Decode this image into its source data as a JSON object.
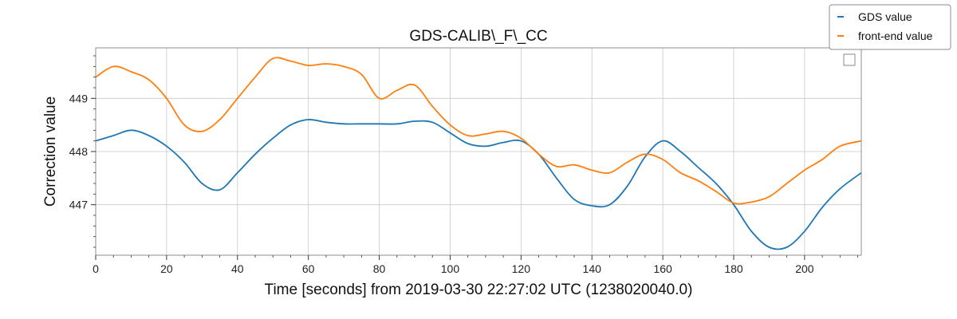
{
  "chart_data": {
    "type": "line",
    "title": "GDS-CALIB\\_F\\_CC",
    "xlabel": "Time [seconds] from 2019-03-30 22:27:02 UTC (1238020040.0)",
    "ylabel": "Correction value",
    "xlim": [
      0,
      216
    ],
    "ylim": [
      446.05,
      449.95
    ],
    "x_ticks": [
      0,
      20,
      40,
      60,
      80,
      100,
      120,
      140,
      160,
      180,
      200
    ],
    "y_ticks": [
      447,
      448,
      449
    ],
    "grid": true,
    "legend_position": "top-right",
    "series": [
      {
        "name": "GDS value",
        "color": "#1f77b4",
        "x": [
          0,
          5,
          10,
          15,
          20,
          25,
          30,
          35,
          40,
          45,
          50,
          55,
          60,
          65,
          70,
          75,
          80,
          85,
          90,
          95,
          100,
          105,
          110,
          115,
          120,
          125,
          130,
          135,
          140,
          145,
          150,
          155,
          160,
          165,
          170,
          175,
          180,
          185,
          190,
          195,
          200,
          205,
          210,
          216
        ],
        "values": [
          448.2,
          448.3,
          448.4,
          448.3,
          448.1,
          447.8,
          447.4,
          447.28,
          447.6,
          447.95,
          448.25,
          448.5,
          448.6,
          448.55,
          448.52,
          448.52,
          448.52,
          448.52,
          448.57,
          448.55,
          448.35,
          448.15,
          448.1,
          448.17,
          448.2,
          447.95,
          447.5,
          447.1,
          446.98,
          447.0,
          447.35,
          447.9,
          448.2,
          448.0,
          447.7,
          447.4,
          447.0,
          446.5,
          446.2,
          446.2,
          446.5,
          446.95,
          447.3,
          447.6
        ]
      },
      {
        "name": "front-end value",
        "color": "#ff7f0e",
        "x": [
          0,
          5,
          10,
          15,
          20,
          25,
          30,
          35,
          40,
          45,
          50,
          55,
          60,
          65,
          70,
          75,
          80,
          85,
          90,
          95,
          100,
          105,
          110,
          115,
          120,
          125,
          130,
          135,
          140,
          145,
          150,
          155,
          160,
          165,
          170,
          175,
          180,
          185,
          190,
          195,
          200,
          205,
          210,
          216
        ],
        "values": [
          449.4,
          449.6,
          449.5,
          449.35,
          449.0,
          448.5,
          448.38,
          448.6,
          449.0,
          449.4,
          449.75,
          449.7,
          449.62,
          449.65,
          449.6,
          449.45,
          449.0,
          449.15,
          449.25,
          448.85,
          448.5,
          448.3,
          448.33,
          448.38,
          448.25,
          447.95,
          447.72,
          447.75,
          447.65,
          447.6,
          447.8,
          447.95,
          447.85,
          447.6,
          447.45,
          447.25,
          447.03,
          447.05,
          447.15,
          447.4,
          447.65,
          447.85,
          448.1,
          448.2
        ]
      }
    ]
  }
}
